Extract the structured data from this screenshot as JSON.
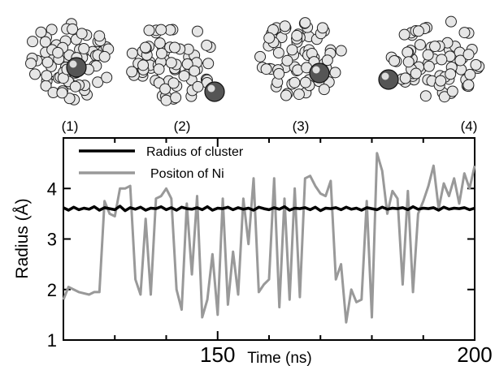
{
  "snapshots": [
    {
      "label": "(1)",
      "at_time": 120
    },
    {
      "label": "(2)",
      "at_time": 150
    },
    {
      "label": "(3)",
      "at_time": 170
    },
    {
      "label": "(4)",
      "at_time": 200
    }
  ],
  "colors": {
    "radius_series": "#000000",
    "ni_series": "#999999",
    "atom_fill": "#e6e6e6",
    "ni_atom_fill": "#555555"
  },
  "chart_data": {
    "type": "line",
    "title": "",
    "xlabel": "Time (ns)",
    "ylabel": "Radius (Å)",
    "xlim": [
      120,
      200
    ],
    "ylim": [
      1,
      5
    ],
    "x_ticks": [
      150,
      200
    ],
    "x_tick_labels": [
      "150",
      "200"
    ],
    "x_minor_ticks": [
      130,
      140,
      160,
      170,
      180,
      190
    ],
    "y_ticks": [
      1,
      2,
      3,
      4
    ],
    "y_tick_labels": [
      "1",
      "2",
      "3",
      "4"
    ],
    "grid": false,
    "legend_position": "top-left",
    "series": [
      {
        "name": "Radius of cluster",
        "x": [
          120,
          121,
          122,
          123,
          124,
          125,
          126,
          127,
          128,
          129,
          130,
          131,
          132,
          133,
          134,
          135,
          136,
          137,
          138,
          139,
          140,
          141,
          142,
          143,
          144,
          145,
          146,
          147,
          148,
          149,
          150,
          151,
          152,
          153,
          154,
          155,
          156,
          157,
          158,
          159,
          160,
          161,
          162,
          163,
          164,
          165,
          166,
          167,
          168,
          169,
          170,
          171,
          172,
          173,
          174,
          175,
          176,
          177,
          178,
          179,
          180,
          181,
          182,
          183,
          184,
          185,
          186,
          187,
          188,
          189,
          190,
          191,
          192,
          193,
          194,
          195,
          196,
          197,
          198,
          199,
          200
        ],
        "y": [
          3.62,
          3.57,
          3.63,
          3.58,
          3.61,
          3.59,
          3.64,
          3.57,
          3.62,
          3.6,
          3.58,
          3.65,
          3.56,
          3.62,
          3.59,
          3.63,
          3.57,
          3.61,
          3.6,
          3.64,
          3.58,
          3.62,
          3.57,
          3.63,
          3.6,
          3.59,
          3.62,
          3.58,
          3.64,
          3.57,
          3.61,
          3.6,
          3.63,
          3.58,
          3.62,
          3.59,
          3.61,
          3.57,
          3.63,
          3.6,
          3.58,
          3.62,
          3.59,
          3.64,
          3.57,
          3.61,
          3.6,
          3.62,
          3.58,
          3.63,
          3.56,
          3.61,
          3.6,
          3.62,
          3.58,
          3.63,
          3.59,
          3.61,
          3.57,
          3.62,
          3.6,
          3.58,
          3.63,
          3.59,
          3.61,
          3.6,
          3.62,
          3.58,
          3.64,
          3.59,
          3.61,
          3.6,
          3.62,
          3.57,
          3.63,
          3.59,
          3.61,
          3.6,
          3.62,
          3.58,
          3.61
        ]
      },
      {
        "name": "Positon of Ni",
        "x": [
          120,
          121,
          123,
          125,
          126,
          127,
          128,
          129,
          130,
          131,
          132,
          133,
          134,
          135,
          136,
          137,
          138,
          139,
          140,
          141,
          142,
          143,
          144,
          145,
          146,
          147,
          148,
          149,
          150,
          151,
          152,
          153,
          154,
          155,
          156,
          157,
          158,
          159,
          160,
          161,
          162,
          163,
          164,
          165,
          166,
          167,
          168,
          169,
          170,
          171,
          172,
          173,
          174,
          175,
          176,
          177,
          178,
          179,
          180,
          181,
          182,
          183,
          184,
          185,
          186,
          187,
          188,
          189,
          190,
          191,
          192,
          193,
          194,
          195,
          196,
          197,
          198,
          199,
          200
        ],
        "y": [
          1.8,
          2.05,
          1.95,
          1.9,
          1.95,
          1.95,
          3.75,
          3.5,
          3.45,
          4.0,
          4.0,
          4.05,
          2.2,
          1.9,
          3.4,
          1.9,
          3.8,
          3.85,
          4.0,
          3.8,
          2.0,
          1.6,
          3.7,
          2.3,
          3.85,
          1.45,
          1.8,
          2.7,
          1.5,
          3.8,
          1.7,
          2.75,
          1.9,
          3.8,
          2.9,
          4.2,
          1.95,
          2.1,
          2.2,
          4.2,
          1.65,
          3.8,
          1.8,
          4.0,
          1.85,
          4.2,
          4.25,
          4.05,
          3.9,
          3.85,
          4.15,
          2.2,
          2.5,
          1.35,
          2.0,
          1.75,
          1.8,
          3.75,
          1.45,
          4.7,
          4.35,
          3.5,
          3.95,
          3.8,
          2.1,
          3.95,
          1.95,
          3.5,
          3.75,
          4.05,
          4.45,
          3.6,
          4.1,
          3.85,
          4.2,
          3.7,
          4.3,
          4.0,
          4.45
        ]
      }
    ]
  }
}
